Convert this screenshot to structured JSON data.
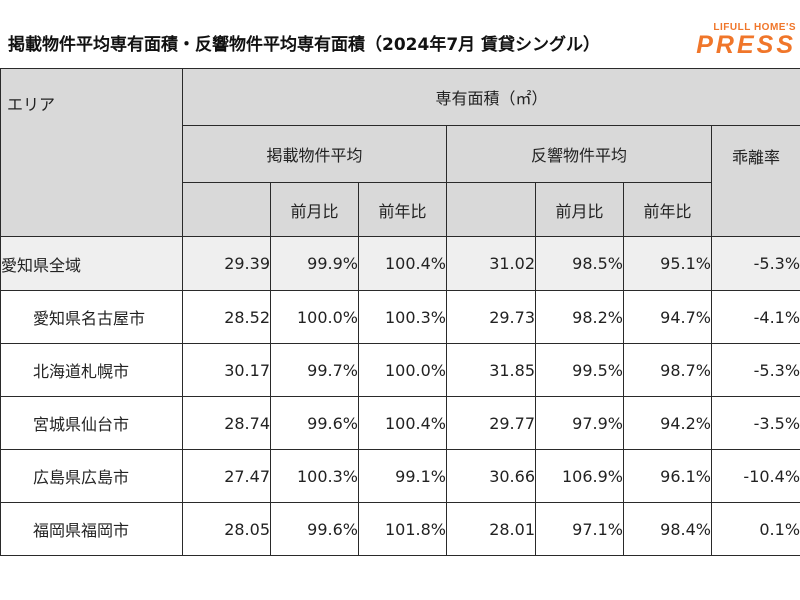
{
  "title": "掲載物件平均専有面積・反響物件平均専有面積（2024年7月 賃貸シングル）",
  "brand": {
    "sub": "LIFULL HOME'S",
    "main": "PRESS",
    "color": "#f0762a"
  },
  "table": {
    "area_header": "エリア",
    "group_header": "専有面積（㎡）",
    "listing_header": "掲載物件平均",
    "response_header": "反響物件平均",
    "gap_header": "乖離率",
    "mom_header": "前月比",
    "yoy_header": "前年比",
    "rows": [
      {
        "name": "愛知県全域",
        "l_avg": "29.39",
        "l_mom": "99.9%",
        "l_yoy": "100.4%",
        "r_avg": "31.02",
        "r_mom": "98.5%",
        "r_yoy": "95.1%",
        "gap": "-5.3%"
      },
      {
        "name": "愛知県名古屋市",
        "l_avg": "28.52",
        "l_mom": "100.0%",
        "l_yoy": "100.3%",
        "r_avg": "29.73",
        "r_mom": "98.2%",
        "r_yoy": "94.7%",
        "gap": "-4.1%"
      },
      {
        "name": "北海道札幌市",
        "l_avg": "30.17",
        "l_mom": "99.7%",
        "l_yoy": "100.0%",
        "r_avg": "31.85",
        "r_mom": "99.5%",
        "r_yoy": "98.7%",
        "gap": "-5.3%"
      },
      {
        "name": "宮城県仙台市",
        "l_avg": "28.74",
        "l_mom": "99.6%",
        "l_yoy": "100.4%",
        "r_avg": "29.77",
        "r_mom": "97.9%",
        "r_yoy": "94.2%",
        "gap": "-3.5%"
      },
      {
        "name": "広島県広島市",
        "l_avg": "27.47",
        "l_mom": "100.3%",
        "l_yoy": "99.1%",
        "r_avg": "30.66",
        "r_mom": "106.9%",
        "r_yoy": "96.1%",
        "gap": "-10.4%"
      },
      {
        "name": "福岡県福岡市",
        "l_avg": "28.05",
        "l_mom": "99.6%",
        "l_yoy": "101.8%",
        "r_avg": "28.01",
        "r_mom": "97.1%",
        "r_yoy": "98.4%",
        "gap": "0.1%"
      }
    ]
  }
}
